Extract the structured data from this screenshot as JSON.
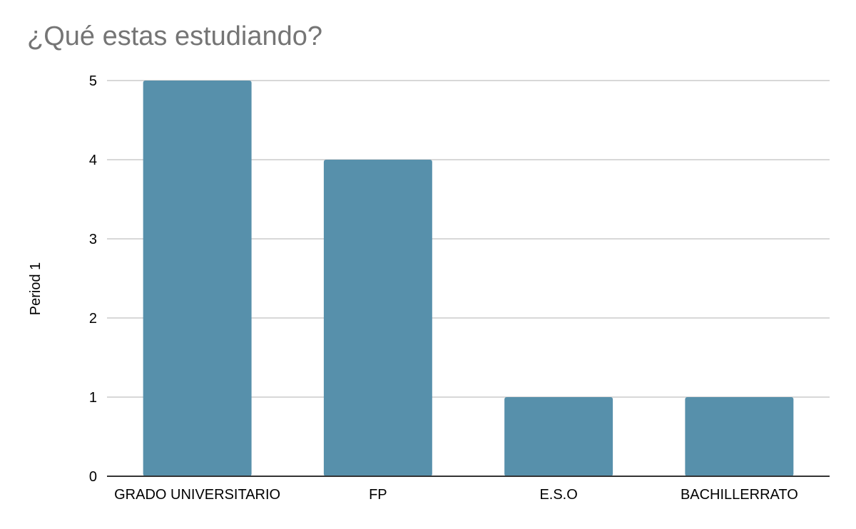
{
  "chart_data": {
    "type": "bar",
    "title": "¿Qué estas estudiando?",
    "xlabel": "",
    "ylabel": "Period 1",
    "categories": [
      "GRADO UNIVERSITARIO",
      "FP",
      "E.S.O",
      "BACHILLERRATO"
    ],
    "series": [
      {
        "values": [
          5,
          4,
          1,
          1
        ]
      }
    ],
    "ylim": [
      0,
      5
    ],
    "yticks": [
      0,
      1,
      2,
      3,
      4,
      5
    ],
    "grid": true,
    "legend": "none",
    "colors": {
      "bar": "#5790ab",
      "grid": "#cccccc",
      "axis": "#333333",
      "title": "#757575"
    }
  }
}
